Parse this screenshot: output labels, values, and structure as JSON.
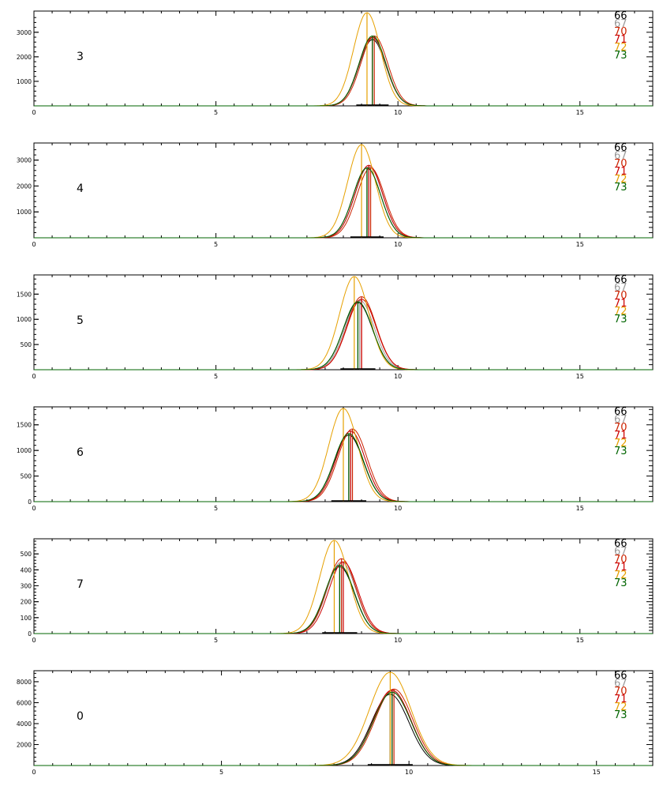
{
  "chart_data": [
    {
      "type": "line",
      "panel_label": "3",
      "xlim": [
        0,
        17
      ],
      "ylim": [
        0,
        3800
      ],
      "x_ticks": [
        0,
        5,
        10,
        15
      ],
      "y_ticks": [
        1000,
        2000,
        3000
      ],
      "series": [
        {
          "name": "66",
          "color": "#000000",
          "center": 9.3,
          "sigma": 0.37,
          "peak": 2700
        },
        {
          "name": "67",
          "color": "#999999",
          "center": 9.3,
          "sigma": 0.37,
          "peak": 2750
        },
        {
          "name": "70",
          "color": "#cc2200",
          "center": 9.35,
          "sigma": 0.37,
          "peak": 2850
        },
        {
          "name": "71",
          "color": "#cc0000",
          "center": 9.3,
          "sigma": 0.37,
          "peak": 2800
        },
        {
          "name": "72",
          "color": "#e6a000",
          "center": 9.15,
          "sigma": 0.37,
          "peak": 3800
        },
        {
          "name": "73",
          "color": "#006400",
          "center": 9.3,
          "sigma": 0.37,
          "peak": 2850
        }
      ]
    },
    {
      "type": "line",
      "panel_label": "4",
      "xlim": [
        0,
        17
      ],
      "ylim": [
        0,
        3600
      ],
      "x_ticks": [
        0,
        5,
        10,
        15
      ],
      "y_ticks": [
        1000,
        2000,
        3000
      ],
      "series": [
        {
          "name": "66",
          "color": "#000000",
          "center": 9.15,
          "sigma": 0.38,
          "peak": 2700
        },
        {
          "name": "67",
          "color": "#999999",
          "center": 9.2,
          "sigma": 0.38,
          "peak": 2750
        },
        {
          "name": "70",
          "color": "#cc2200",
          "center": 9.25,
          "sigma": 0.38,
          "peak": 2700
        },
        {
          "name": "71",
          "color": "#cc0000",
          "center": 9.2,
          "sigma": 0.38,
          "peak": 2800
        },
        {
          "name": "72",
          "color": "#e6a000",
          "center": 9.0,
          "sigma": 0.38,
          "peak": 3600
        },
        {
          "name": "73",
          "color": "#006400",
          "center": 9.15,
          "sigma": 0.38,
          "peak": 2700
        }
      ]
    },
    {
      "type": "line",
      "panel_label": "5",
      "xlim": [
        0,
        17
      ],
      "ylim": [
        0,
        1850
      ],
      "x_ticks": [
        0,
        5,
        10,
        15
      ],
      "y_ticks": [
        500,
        1000,
        1500
      ],
      "series": [
        {
          "name": "66",
          "color": "#000000",
          "center": 8.9,
          "sigma": 0.4,
          "peak": 1330
        },
        {
          "name": "67",
          "color": "#999999",
          "center": 8.95,
          "sigma": 0.4,
          "peak": 1380
        },
        {
          "name": "70",
          "color": "#cc2200",
          "center": 9.0,
          "sigma": 0.4,
          "peak": 1450
        },
        {
          "name": "71",
          "color": "#cc0000",
          "center": 9.0,
          "sigma": 0.4,
          "peak": 1400
        },
        {
          "name": "72",
          "color": "#e6a000",
          "center": 8.8,
          "sigma": 0.4,
          "peak": 1850
        },
        {
          "name": "73",
          "color": "#006400",
          "center": 8.9,
          "sigma": 0.4,
          "peak": 1350
        }
      ]
    },
    {
      "type": "line",
      "panel_label": "6",
      "xlim": [
        0,
        17
      ],
      "ylim": [
        0,
        1820
      ],
      "x_ticks": [
        0,
        5,
        10,
        15
      ],
      "y_ticks": [
        0,
        500,
        1000,
        1500
      ],
      "series": [
        {
          "name": "66",
          "color": "#000000",
          "center": 8.65,
          "sigma": 0.4,
          "peak": 1300
        },
        {
          "name": "67",
          "color": "#999999",
          "center": 8.7,
          "sigma": 0.4,
          "peak": 1380
        },
        {
          "name": "70",
          "color": "#cc2200",
          "center": 8.75,
          "sigma": 0.4,
          "peak": 1420
        },
        {
          "name": "71",
          "color": "#cc0000",
          "center": 8.7,
          "sigma": 0.4,
          "peak": 1380
        },
        {
          "name": "72",
          "color": "#e6a000",
          "center": 8.5,
          "sigma": 0.4,
          "peak": 1820
        },
        {
          "name": "73",
          "color": "#006400",
          "center": 8.65,
          "sigma": 0.4,
          "peak": 1330
        }
      ]
    },
    {
      "type": "line",
      "panel_label": "7",
      "xlim": [
        0,
        17
      ],
      "ylim": [
        0,
        585
      ],
      "x_ticks": [
        0,
        5,
        10,
        15
      ],
      "y_ticks": [
        0,
        100,
        200,
        300,
        400,
        500
      ],
      "series": [
        {
          "name": "66",
          "color": "#000000",
          "center": 8.4,
          "sigma": 0.4,
          "peak": 420
        },
        {
          "name": "67",
          "color": "#999999",
          "center": 8.45,
          "sigma": 0.4,
          "peak": 450
        },
        {
          "name": "70",
          "color": "#cc2200",
          "center": 8.45,
          "sigma": 0.4,
          "peak": 470
        },
        {
          "name": "71",
          "color": "#cc0000",
          "center": 8.5,
          "sigma": 0.4,
          "peak": 450
        },
        {
          "name": "72",
          "color": "#e6a000",
          "center": 8.25,
          "sigma": 0.4,
          "peak": 585
        },
        {
          "name": "73",
          "color": "#006400",
          "center": 8.4,
          "sigma": 0.4,
          "peak": 430
        }
      ]
    },
    {
      "type": "line",
      "panel_label": "0",
      "xlim": [
        0,
        16.5
      ],
      "ylim": [
        0,
        8900
      ],
      "x_ticks": [
        0,
        5,
        10,
        15
      ],
      "y_ticks": [
        2000,
        4000,
        6000,
        8000
      ],
      "series": [
        {
          "name": "66",
          "color": "#000000",
          "center": 9.5,
          "sigma": 0.5,
          "peak": 6800
        },
        {
          "name": "67",
          "color": "#999999",
          "center": 9.55,
          "sigma": 0.5,
          "peak": 7100
        },
        {
          "name": "70",
          "color": "#cc2200",
          "center": 9.6,
          "sigma": 0.5,
          "peak": 7300
        },
        {
          "name": "71",
          "color": "#cc0000",
          "center": 9.55,
          "sigma": 0.5,
          "peak": 7200
        },
        {
          "name": "72",
          "color": "#e6a000",
          "center": 9.5,
          "sigma": 0.55,
          "peak": 8900
        },
        {
          "name": "73",
          "color": "#006400",
          "center": 9.55,
          "sigma": 0.5,
          "peak": 7000
        }
      ]
    }
  ]
}
